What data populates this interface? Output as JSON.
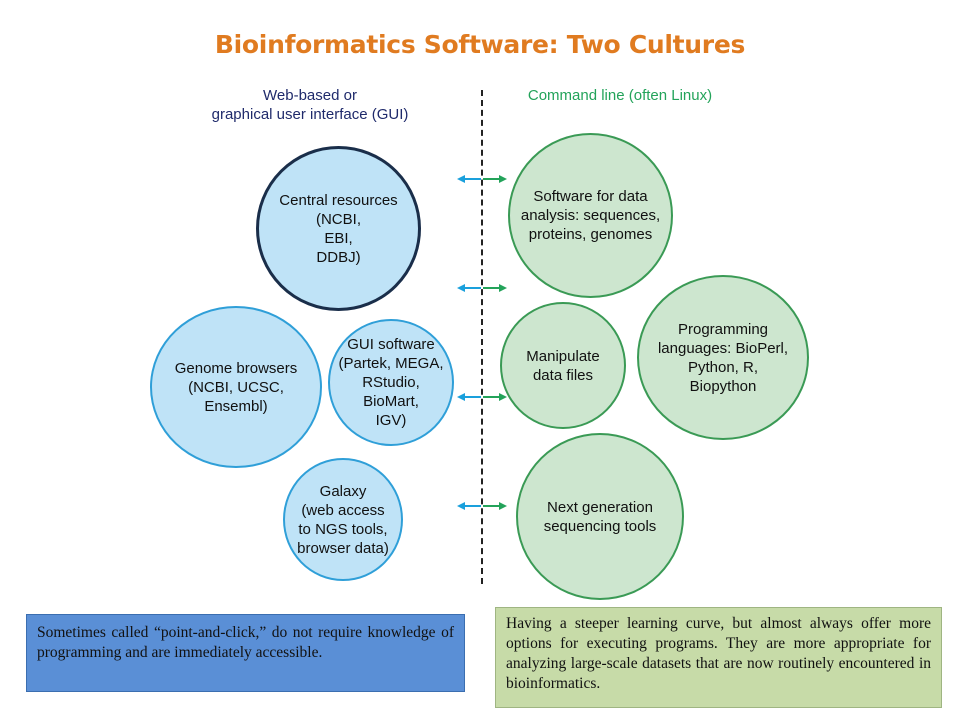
{
  "title": "Bioinformatics Software: Two Cultures",
  "left_header": "Web-based or\ngraphical user interface (GUI)",
  "right_header": "Command line (often Linux)",
  "left_nodes": {
    "central": "Central resources\n(NCBI,\nEBI,\nDDBJ)",
    "genome": "Genome browsers\n(NCBI, UCSC,\nEnsembl)",
    "gui": "GUI software\n(Partek, MEGA,\nRStudio,\nBioMart,\nIGV)",
    "galaxy": "Galaxy\n(web access\nto NGS tools,\nbrowser data)"
  },
  "right_nodes": {
    "software": "Software for data\nanalysis: sequences,\nproteins, genomes",
    "manipulate": "Manipulate\ndata files",
    "programming": "Programming\nlanguages: BioPerl,\nPython, R,\nBiopython",
    "ngs": "Next generation\nsequencing tools"
  },
  "left_note": "Sometimes called “point-and-click,” do not require knowledge of programming and are immediately accessible.",
  "right_note": "Having a steeper learning curve, but almost always offer more options for executing programs. They are more appropriate for analyzing large-scale datasets that are now routinely encountered in bioinformatics.",
  "colors": {
    "title": "#e07b20",
    "left_header": "#1f2a6b",
    "right_header": "#23a35a",
    "arrow_left": "#1aa0dc",
    "arrow_right": "#23a35a"
  }
}
